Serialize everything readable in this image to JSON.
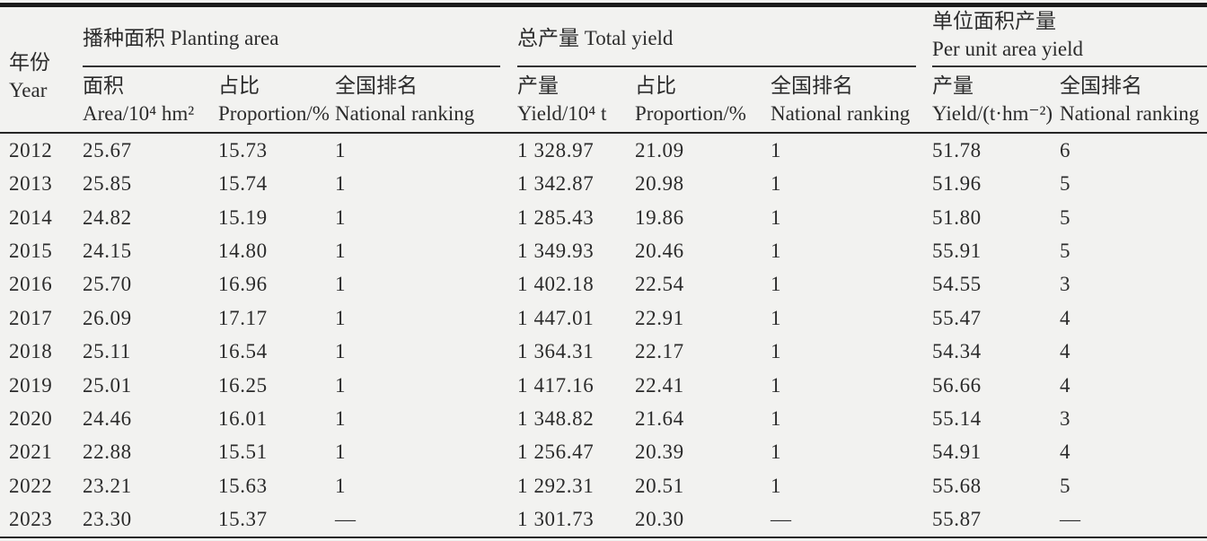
{
  "colors": {
    "background": "#f2f2f0",
    "ink": "#2b2b2b",
    "rule": "#262626"
  },
  "table": {
    "year_col": {
      "zh": "年份",
      "en": "Year"
    },
    "groups": [
      {
        "lines": [
          "播种面积 Planting area"
        ]
      },
      {
        "lines": [
          "总产量 Total yield"
        ]
      },
      {
        "lines": [
          "单位面积产量",
          "Per unit area yield"
        ]
      }
    ],
    "subheaders": [
      {
        "zh": "面积",
        "en": "Area/10⁴ hm²"
      },
      {
        "zh": "占比",
        "en": "Proportion/%"
      },
      {
        "zh": "全国排名",
        "en": "National ranking"
      },
      {
        "zh": "产量",
        "en": "Yield/10⁴ t"
      },
      {
        "zh": "占比",
        "en": "Proportion/%"
      },
      {
        "zh": "全国排名",
        "en": "National ranking"
      },
      {
        "zh": "产量",
        "en": "Yield/(t·hm⁻²)"
      },
      {
        "zh": "全国排名",
        "en": "National ranking"
      }
    ],
    "rows": [
      [
        "2012",
        "25.67",
        "15.73",
        "1",
        "1 328.97",
        "21.09",
        "1",
        "51.78",
        "6"
      ],
      [
        "2013",
        "25.85",
        "15.74",
        "1",
        "1 342.87",
        "20.98",
        "1",
        "51.96",
        "5"
      ],
      [
        "2014",
        "24.82",
        "15.19",
        "1",
        "1 285.43",
        "19.86",
        "1",
        "51.80",
        "5"
      ],
      [
        "2015",
        "24.15",
        "14.80",
        "1",
        "1 349.93",
        "20.46",
        "1",
        "55.91",
        "5"
      ],
      [
        "2016",
        "25.70",
        "16.96",
        "1",
        "1 402.18",
        "22.54",
        "1",
        "54.55",
        "3"
      ],
      [
        "2017",
        "26.09",
        "17.17",
        "1",
        "1 447.01",
        "22.91",
        "1",
        "55.47",
        "4"
      ],
      [
        "2018",
        "25.11",
        "16.54",
        "1",
        "1 364.31",
        "22.17",
        "1",
        "54.34",
        "4"
      ],
      [
        "2019",
        "25.01",
        "16.25",
        "1",
        "1 417.16",
        "22.41",
        "1",
        "56.66",
        "4"
      ],
      [
        "2020",
        "24.46",
        "16.01",
        "1",
        "1 348.82",
        "21.64",
        "1",
        "55.14",
        "3"
      ],
      [
        "2021",
        "22.88",
        "15.51",
        "1",
        "1 256.47",
        "20.39",
        "1",
        "54.91",
        "4"
      ],
      [
        "2022",
        "23.21",
        "15.63",
        "1",
        "1 292.31",
        "20.51",
        "1",
        "55.68",
        "5"
      ],
      [
        "2023",
        "23.30",
        "15.37",
        "—",
        "1 301.73",
        "20.30",
        "—",
        "55.87",
        "—"
      ]
    ]
  },
  "chart_data": {
    "type": "table",
    "index_column": "年份 Year",
    "column_groups": [
      {
        "label": "播种面积 Planting area",
        "columns": [
          "面积 Area/10⁴ hm²",
          "占比 Proportion/%",
          "全国排名 National ranking"
        ]
      },
      {
        "label": "总产量 Total yield",
        "columns": [
          "产量 Yield/10⁴ t",
          "占比 Proportion/%",
          "全国排名 National ranking"
        ]
      },
      {
        "label": "单位面积产量 Per unit area yield",
        "columns": [
          "产量 Yield/(t·hm⁻²)",
          "全国排名 National ranking"
        ]
      }
    ],
    "rows": [
      {
        "year": 2012,
        "planting_area": 25.67,
        "area_proportion_pct": 15.73,
        "area_rank": "1",
        "total_yield": 1328.97,
        "yield_proportion_pct": 21.09,
        "yield_rank": "1",
        "per_unit_yield": 51.78,
        "per_unit_rank": "6"
      },
      {
        "year": 2013,
        "planting_area": 25.85,
        "area_proportion_pct": 15.74,
        "area_rank": "1",
        "total_yield": 1342.87,
        "yield_proportion_pct": 20.98,
        "yield_rank": "1",
        "per_unit_yield": 51.96,
        "per_unit_rank": "5"
      },
      {
        "year": 2014,
        "planting_area": 24.82,
        "area_proportion_pct": 15.19,
        "area_rank": "1",
        "total_yield": 1285.43,
        "yield_proportion_pct": 19.86,
        "yield_rank": "1",
        "per_unit_yield": 51.8,
        "per_unit_rank": "5"
      },
      {
        "year": 2015,
        "planting_area": 24.15,
        "area_proportion_pct": 14.8,
        "area_rank": "1",
        "total_yield": 1349.93,
        "yield_proportion_pct": 20.46,
        "yield_rank": "1",
        "per_unit_yield": 55.91,
        "per_unit_rank": "5"
      },
      {
        "year": 2016,
        "planting_area": 25.7,
        "area_proportion_pct": 16.96,
        "area_rank": "1",
        "total_yield": 1402.18,
        "yield_proportion_pct": 22.54,
        "yield_rank": "1",
        "per_unit_yield": 54.55,
        "per_unit_rank": "3"
      },
      {
        "year": 2017,
        "planting_area": 26.09,
        "area_proportion_pct": 17.17,
        "area_rank": "1",
        "total_yield": 1447.01,
        "yield_proportion_pct": 22.91,
        "yield_rank": "1",
        "per_unit_yield": 55.47,
        "per_unit_rank": "4"
      },
      {
        "year": 2018,
        "planting_area": 25.11,
        "area_proportion_pct": 16.54,
        "area_rank": "1",
        "total_yield": 1364.31,
        "yield_proportion_pct": 22.17,
        "yield_rank": "1",
        "per_unit_yield": 54.34,
        "per_unit_rank": "4"
      },
      {
        "year": 2019,
        "planting_area": 25.01,
        "area_proportion_pct": 16.25,
        "area_rank": "1",
        "total_yield": 1417.16,
        "yield_proportion_pct": 22.41,
        "yield_rank": "1",
        "per_unit_yield": 56.66,
        "per_unit_rank": "4"
      },
      {
        "year": 2020,
        "planting_area": 24.46,
        "area_proportion_pct": 16.01,
        "area_rank": "1",
        "total_yield": 1348.82,
        "yield_proportion_pct": 21.64,
        "yield_rank": "1",
        "per_unit_yield": 55.14,
        "per_unit_rank": "3"
      },
      {
        "year": 2021,
        "planting_area": 22.88,
        "area_proportion_pct": 15.51,
        "area_rank": "1",
        "total_yield": 1256.47,
        "yield_proportion_pct": 20.39,
        "yield_rank": "1",
        "per_unit_yield": 54.91,
        "per_unit_rank": "4"
      },
      {
        "year": 2022,
        "planting_area": 23.21,
        "area_proportion_pct": 15.63,
        "area_rank": "1",
        "total_yield": 1292.31,
        "yield_proportion_pct": 20.51,
        "yield_rank": "1",
        "per_unit_yield": 55.68,
        "per_unit_rank": "5"
      },
      {
        "year": 2023,
        "planting_area": 23.3,
        "area_proportion_pct": 15.37,
        "area_rank": "—",
        "total_yield": 1301.73,
        "yield_proportion_pct": 20.3,
        "yield_rank": "—",
        "per_unit_yield": 55.87,
        "per_unit_rank": "—"
      }
    ]
  }
}
